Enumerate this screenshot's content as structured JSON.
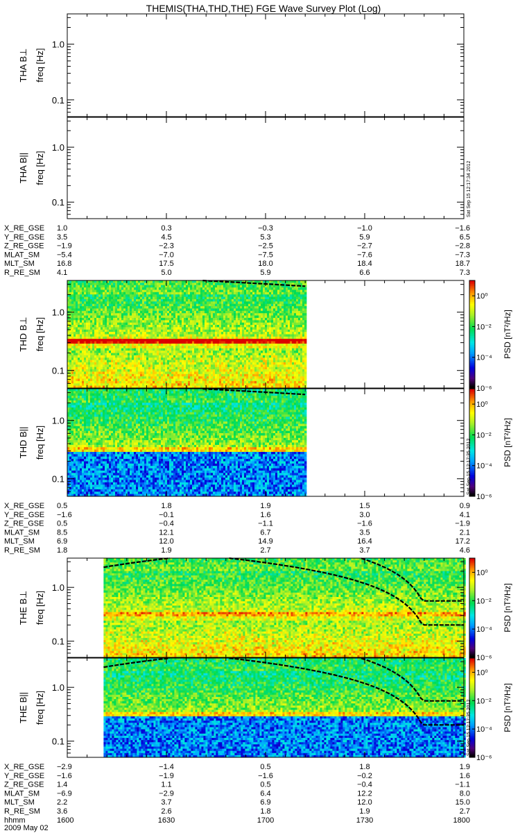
{
  "title": "THEMIS(THA,THD,THE) FGE Wave Survey Plot (Log)",
  "footer_date": "2009 May 02",
  "ylabel_unit": "freq [Hz]",
  "colorbar_label": "PSD [nT²/Hz]",
  "colorbar_ticks": [
    "10⁰",
    "10⁻²",
    "10⁻⁴",
    "10⁻⁶"
  ],
  "ytick_labels": [
    "1.0",
    "0.1"
  ],
  "timestamps": {
    "tha": "Sat Sep 15 12:17:34 2012",
    "thd": "Sat Sep 15 12:17:35 2012",
    "the": "Sat Sep 15 12:17:35 2012"
  },
  "panels": [
    {
      "id": "tha_perp",
      "label": "THA B⊥",
      "has_data": false,
      "data_start_hhmm": null,
      "data_end_hhmm": null
    },
    {
      "id": "tha_par",
      "label": "THA B||",
      "has_data": false,
      "data_start_hhmm": null,
      "data_end_hhmm": null
    },
    {
      "id": "thd_perp",
      "label": "THD B⊥",
      "has_data": true,
      "data_start_hhmm": "1600",
      "data_end_hhmm": "1712"
    },
    {
      "id": "thd_par",
      "label": "THD B||",
      "has_data": true,
      "data_start_hhmm": "1600",
      "data_end_hhmm": "1712"
    },
    {
      "id": "the_perp",
      "label": "THE B⊥",
      "has_data": true,
      "data_start_hhmm": "1611",
      "data_end_hhmm": "1800"
    },
    {
      "id": "the_par",
      "label": "THE B||",
      "has_data": true,
      "data_start_hhmm": "1611",
      "data_end_hhmm": "1800"
    }
  ],
  "ephemeris": [
    {
      "probe": "THA",
      "rows": [
        {
          "name": "X_RE_GSE",
          "values": [
            "1.0",
            "0.3",
            "−0.3",
            "−1.0",
            "−1.6"
          ]
        },
        {
          "name": "Y_RE_GSE",
          "values": [
            "3.5",
            "4.5",
            "5.3",
            "5.9",
            "6.5"
          ]
        },
        {
          "name": "Z_RE_GSE",
          "values": [
            "−1.9",
            "−2.3",
            "−2.5",
            "−2.7",
            "−2.8"
          ]
        },
        {
          "name": "MLAT_SM",
          "values": [
            "−5.4",
            "−7.0",
            "−7.5",
            "−7.6",
            "−7.3"
          ]
        },
        {
          "name": "MLT_SM",
          "values": [
            "16.8",
            "17.5",
            "18.0",
            "18.4",
            "18.7"
          ]
        },
        {
          "name": "R_RE_SM",
          "values": [
            "4.1",
            "5.0",
            "5.9",
            "6.6",
            "7.3"
          ]
        }
      ]
    },
    {
      "probe": "THD",
      "rows": [
        {
          "name": "X_RE_GSE",
          "values": [
            "0.5",
            "1.8",
            "1.9",
            "1.5",
            "0.9"
          ]
        },
        {
          "name": "Y_RE_GSE",
          "values": [
            "−1.6",
            "−0.1",
            "1.6",
            "3.0",
            "4.1"
          ]
        },
        {
          "name": "Z_RE_GSE",
          "values": [
            "0.5",
            "−0.4",
            "−1.1",
            "−1.6",
            "−1.9"
          ]
        },
        {
          "name": "MLAT_SM",
          "values": [
            "8.5",
            "12.1",
            "6.7",
            "3.5",
            "2.1"
          ]
        },
        {
          "name": "MLT_SM",
          "values": [
            "6.9",
            "12.0",
            "14.9",
            "16.4",
            "17.2"
          ]
        },
        {
          "name": "R_RE_SM",
          "values": [
            "1.8",
            "1.9",
            "2.7",
            "3.7",
            "4.6"
          ]
        }
      ]
    },
    {
      "probe": "THE",
      "rows": [
        {
          "name": "X_RE_GSE",
          "values": [
            "−2.9",
            "−1.4",
            "0.5",
            "1.8",
            "1.9"
          ]
        },
        {
          "name": "Y_RE_GSE",
          "values": [
            "−1.6",
            "−1.9",
            "−1.6",
            "−0.2",
            "1.6"
          ]
        },
        {
          "name": "Z_RE_GSE",
          "values": [
            "1.4",
            "1.1",
            "0.5",
            "−0.4",
            "−1.1"
          ]
        },
        {
          "name": "MLAT_SM",
          "values": [
            "−6.9",
            "−2.9",
            "6.4",
            "12.2",
            "8.0"
          ]
        },
        {
          "name": "MLT_SM",
          "values": [
            "2.2",
            "3.7",
            "6.9",
            "12.0",
            "15.0"
          ]
        },
        {
          "name": "R_RE_SM",
          "values": [
            "3.6",
            "2.6",
            "1.8",
            "1.9",
            "2.7"
          ]
        },
        {
          "name": "hhmm",
          "values": [
            "1600",
            "1630",
            "1700",
            "1730",
            "1800"
          ]
        }
      ]
    }
  ],
  "chart_data": {
    "type": "heatmap",
    "title": "THEMIS(THA,THD,THE) FGE Wave Survey Plot (Log)",
    "xlabel": "hhmm",
    "x_ticks": [
      "1600",
      "1630",
      "1700",
      "1730",
      "1800"
    ],
    "ylabel": "freq [Hz]",
    "y_scale": "log",
    "y_ticks": [
      1.0,
      0.1
    ],
    "ylim": [
      0.05,
      3.5
    ],
    "colorbar": {
      "label": "PSD [nT²/Hz]",
      "scale": "log",
      "range": [
        1e-06,
        10.0
      ],
      "colormap": "rainbow"
    },
    "panels": [
      "THA B⊥",
      "THA B||",
      "THD B⊥",
      "THD B||",
      "THE B⊥",
      "THE B||"
    ],
    "overlay_lines": "dashed gyrofrequency-like curves"
  }
}
